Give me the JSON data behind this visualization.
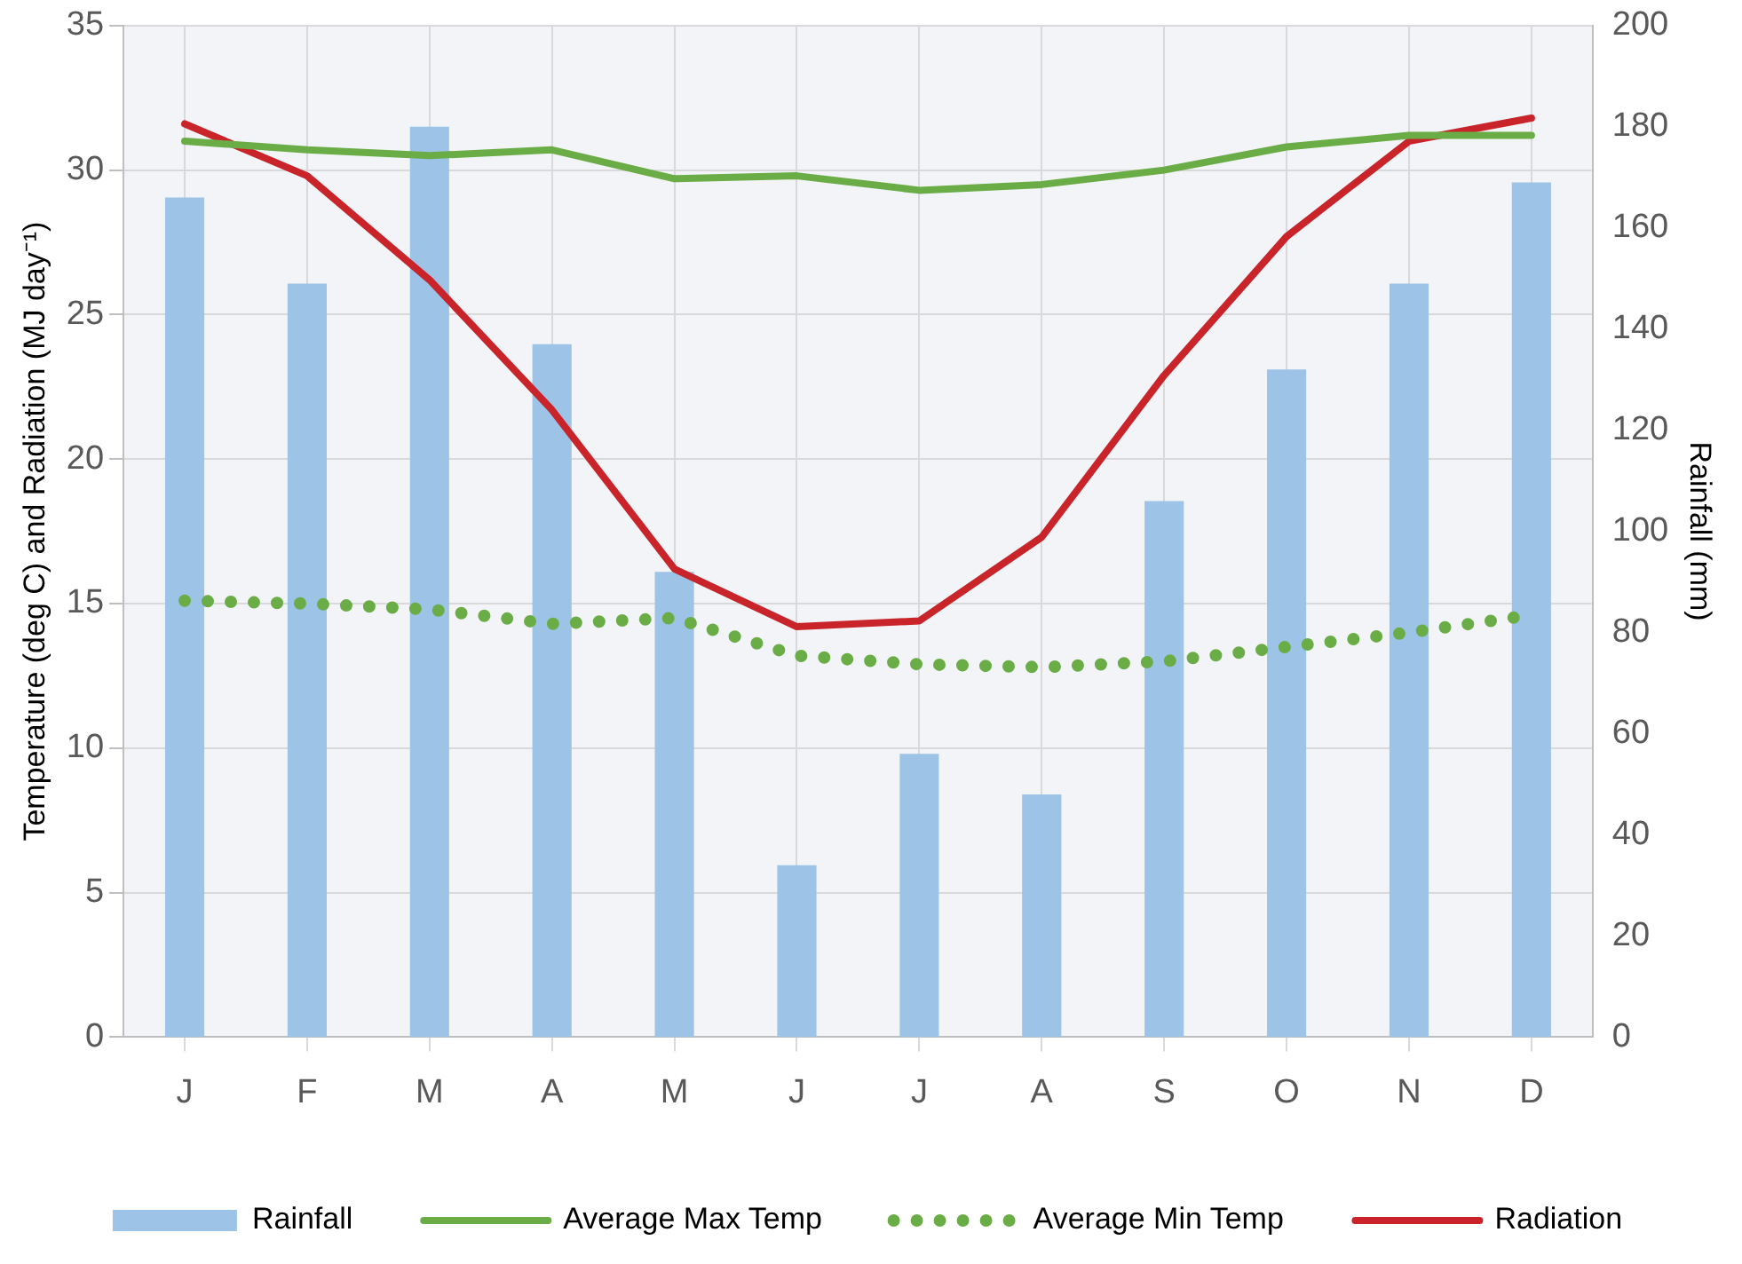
{
  "chart_data": {
    "type": "bar",
    "categories": [
      "J",
      "F",
      "M",
      "A",
      "M",
      "J",
      "J",
      "A",
      "S",
      "O",
      "N",
      "D"
    ],
    "ylabel": "Temperature (deg C) and Radiation (MJ day⁻¹)",
    "y2label": "Rainfall (mm)",
    "ylim": [
      0,
      35
    ],
    "yticks": [
      0,
      5,
      10,
      15,
      20,
      25,
      30,
      35
    ],
    "y2lim": [
      0,
      200
    ],
    "y2ticks": [
      0,
      20,
      40,
      60,
      80,
      100,
      120,
      140,
      160,
      180,
      200
    ],
    "grid": true,
    "legend": "bottom",
    "series": [
      {
        "name": "Rainfall",
        "axis": "y2",
        "color": "#9dc3e6",
        "values": [
          166,
          149,
          180,
          137,
          92,
          34,
          56,
          48,
          106,
          132,
          149,
          169
        ]
      },
      {
        "name": "Average Max Temp",
        "type": "line",
        "color": "#6aac45",
        "line_style": "solid",
        "values": [
          31.0,
          30.7,
          30.5,
          30.7,
          29.7,
          29.8,
          29.3,
          29.5,
          30.0,
          30.8,
          31.2,
          31.2
        ]
      },
      {
        "name": "Average Min Temp",
        "type": "line",
        "color": "#6aac45",
        "line_style": "dotted",
        "values": [
          15.1,
          15.0,
          14.8,
          14.3,
          14.5,
          13.2,
          12.9,
          12.8,
          13.0,
          13.5,
          14.0,
          14.6
        ]
      },
      {
        "name": "Radiation",
        "type": "line",
        "color": "#c8242a",
        "line_style": "solid",
        "values": [
          31.6,
          29.8,
          26.2,
          21.7,
          16.2,
          14.2,
          14.4,
          17.3,
          22.9,
          27.7,
          31.0,
          31.8
        ]
      }
    ]
  }
}
